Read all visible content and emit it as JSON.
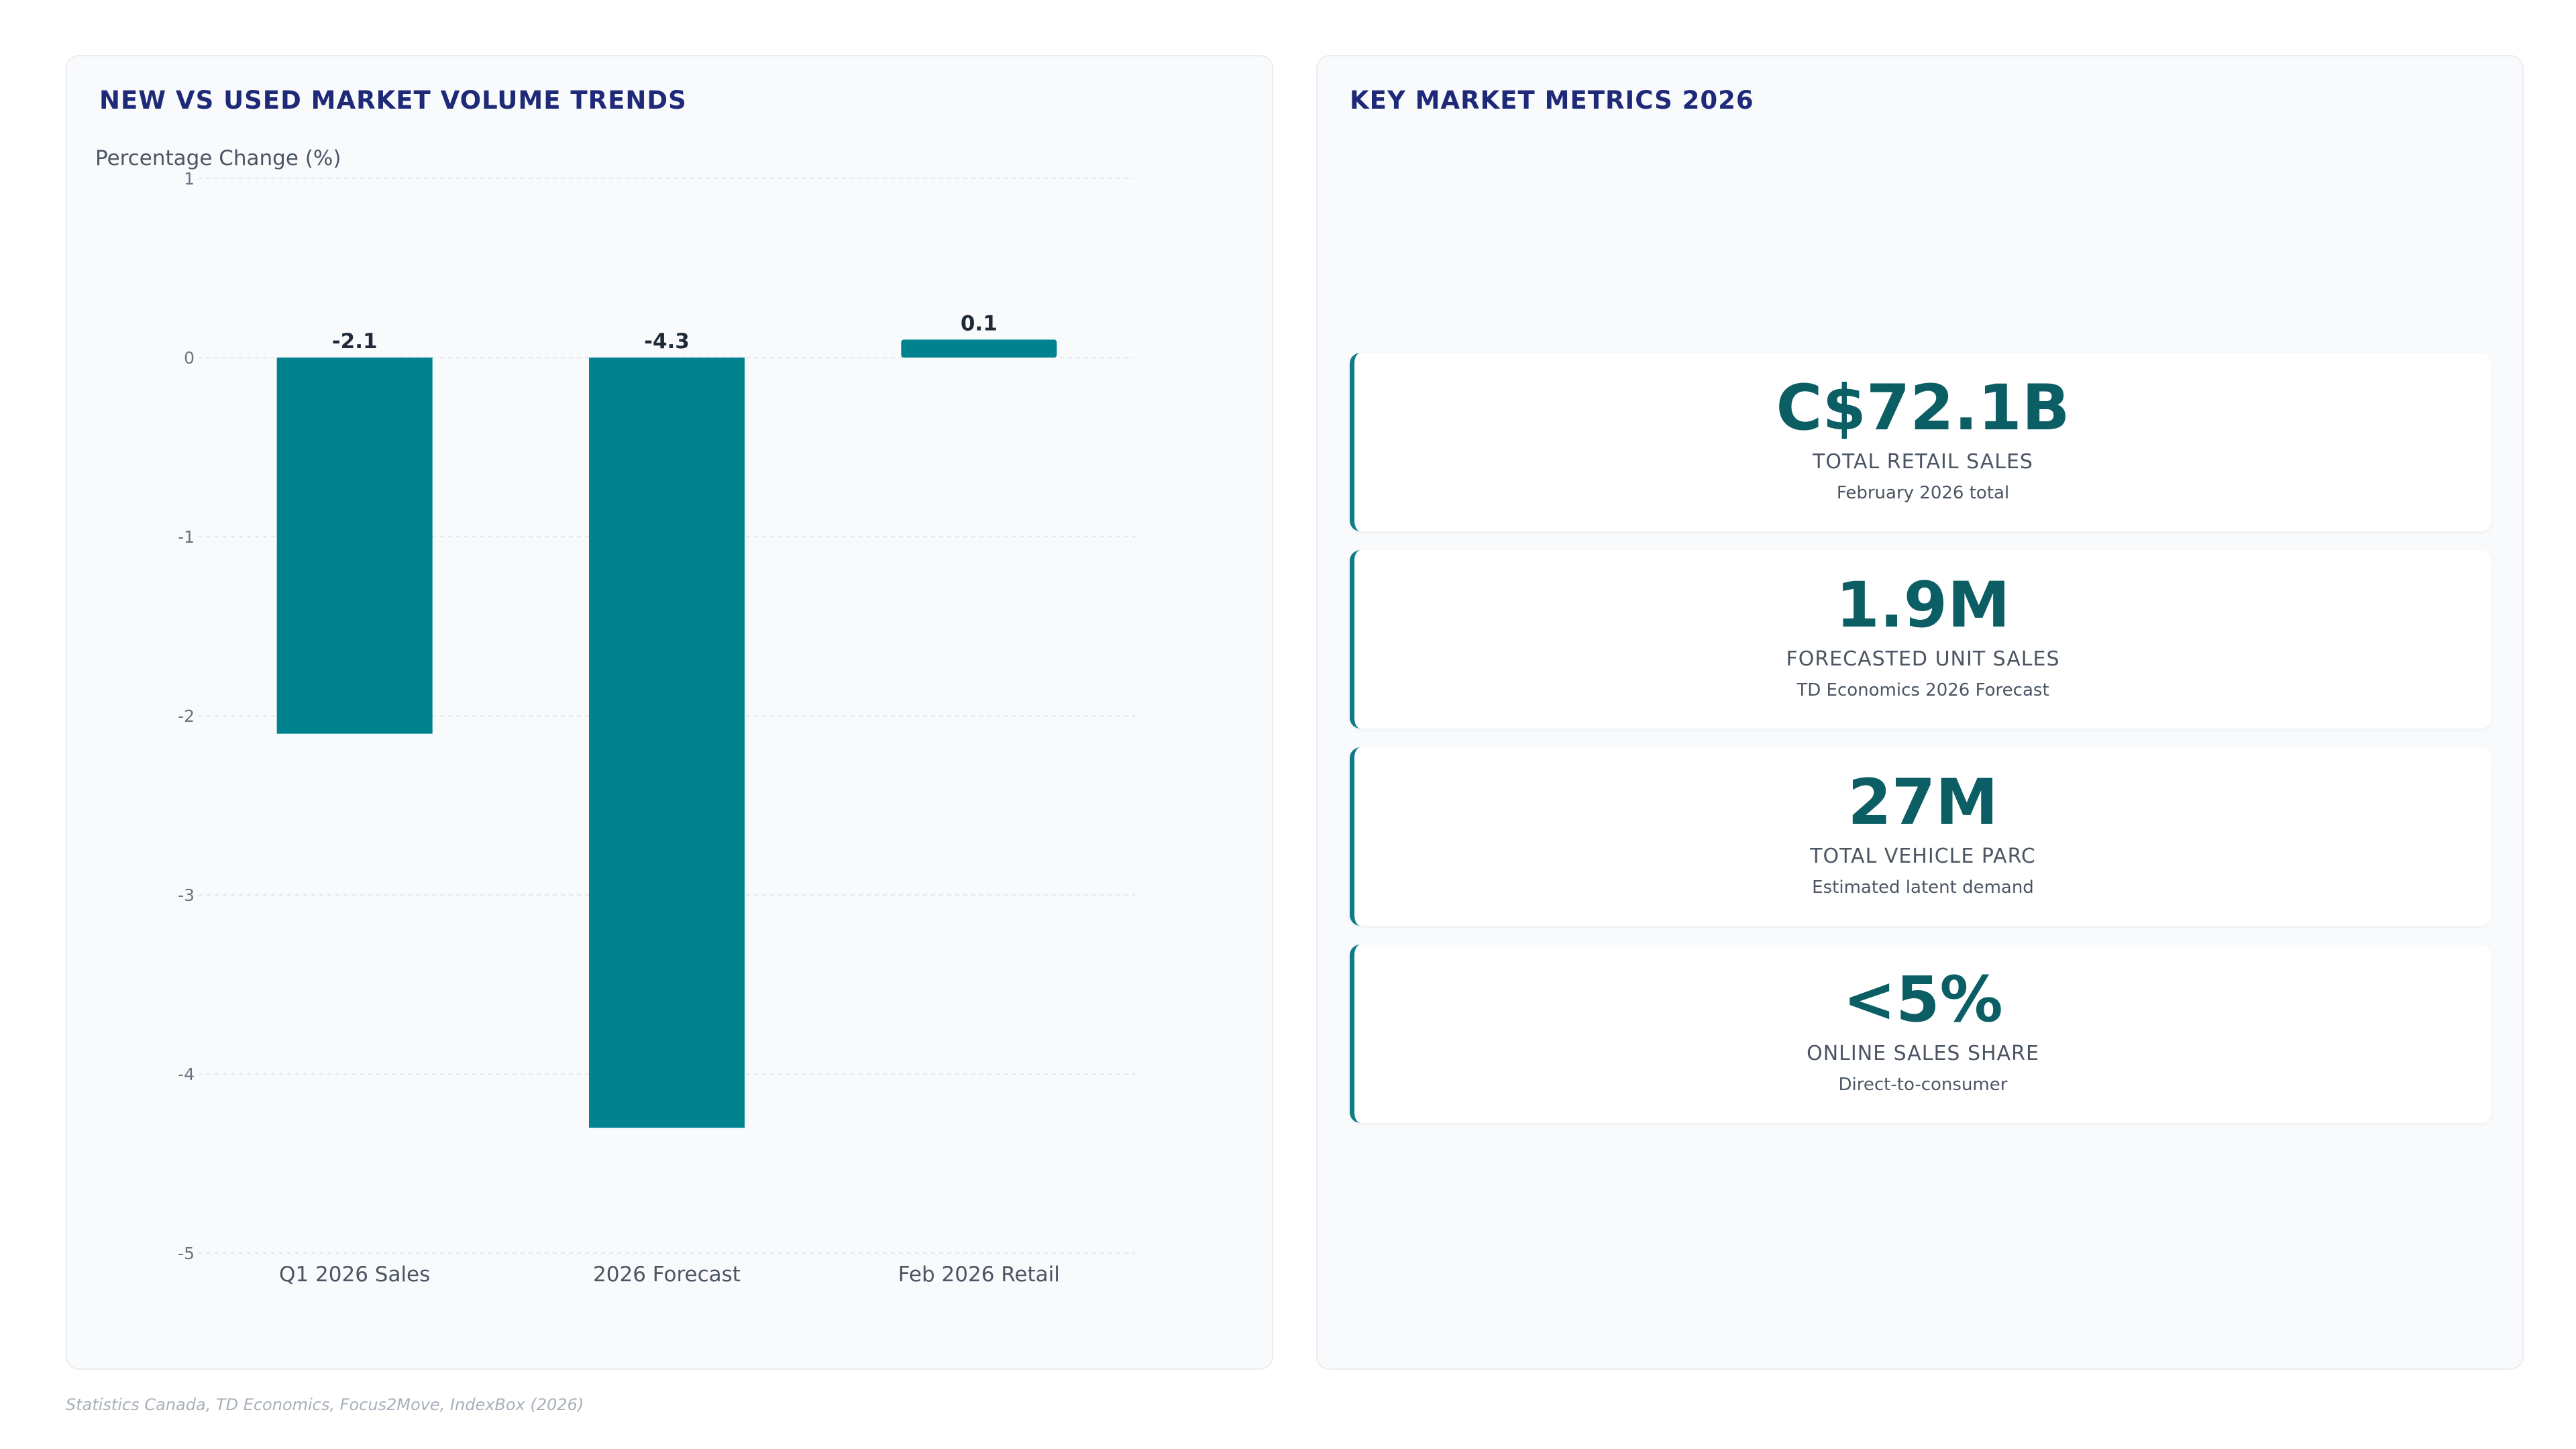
{
  "chart_panel": {
    "title": "NEW VS USED MARKET VOLUME TRENDS"
  },
  "chart_data": {
    "type": "bar",
    "title": "NEW VS USED MARKET VOLUME TRENDS",
    "ylabel": "Percentage Change (%)",
    "xlabel": "",
    "categories": [
      "Q1 2026 Sales",
      "2026 Forecast",
      "Feb 2026 Retail"
    ],
    "values": [
      -2.1,
      -4.3,
      0.1
    ],
    "value_labels": [
      "-2.1",
      "-4.3",
      "0.1"
    ],
    "ylim": [
      -5,
      1
    ],
    "y_ticks": [
      1,
      0,
      -1,
      -2,
      -3,
      -4,
      -5
    ],
    "grid": true,
    "legend": "none",
    "bar_color": "#00838f"
  },
  "metrics_panel": {
    "title": "KEY MARKET METRICS 2026",
    "cards": [
      {
        "value": "C$72.1B",
        "label": "TOTAL RETAIL SALES",
        "sub": "February 2026 total"
      },
      {
        "value": "1.9M",
        "label": "FORECASTED UNIT SALES",
        "sub": "TD Economics 2026 Forecast"
      },
      {
        "value": "27M",
        "label": "TOTAL VEHICLE PARC",
        "sub": "Estimated latent demand"
      },
      {
        "value": "<5%",
        "label": "ONLINE SALES SHARE",
        "sub": "Direct-to-consumer"
      }
    ]
  },
  "footer": {
    "source": "Statistics Canada, TD Economics, Focus2Move, IndexBox (2026)"
  },
  "colors": {
    "accent": "#00838f",
    "title": "#1e2a78",
    "kpi_value": "#0b5e63"
  }
}
